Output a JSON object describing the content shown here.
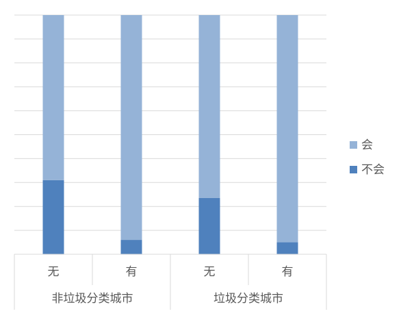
{
  "chart_data": {
    "type": "bar",
    "stacked": true,
    "percent_stacked": true,
    "categories": [
      {
        "label": "无",
        "group": "非垃圾分类城市"
      },
      {
        "label": "有",
        "group": "非垃圾分类城市"
      },
      {
        "label": "无",
        "group": "垃圾分类城市"
      },
      {
        "label": "有",
        "group": "垃圾分类城市"
      }
    ],
    "groups": [
      "非垃圾分类城市",
      "垃圾分类城市"
    ],
    "series": [
      {
        "name": "不会",
        "values": [
          31,
          6,
          23.5,
          5
        ],
        "color": "#4f81bd"
      },
      {
        "name": "会",
        "values": [
          69,
          94,
          76.5,
          95
        ],
        "color": "#95b3d7"
      }
    ],
    "ylim": [
      0,
      100
    ],
    "grid": true,
    "legend_position": "right",
    "title": "",
    "xlabel": "",
    "ylabel": ""
  }
}
